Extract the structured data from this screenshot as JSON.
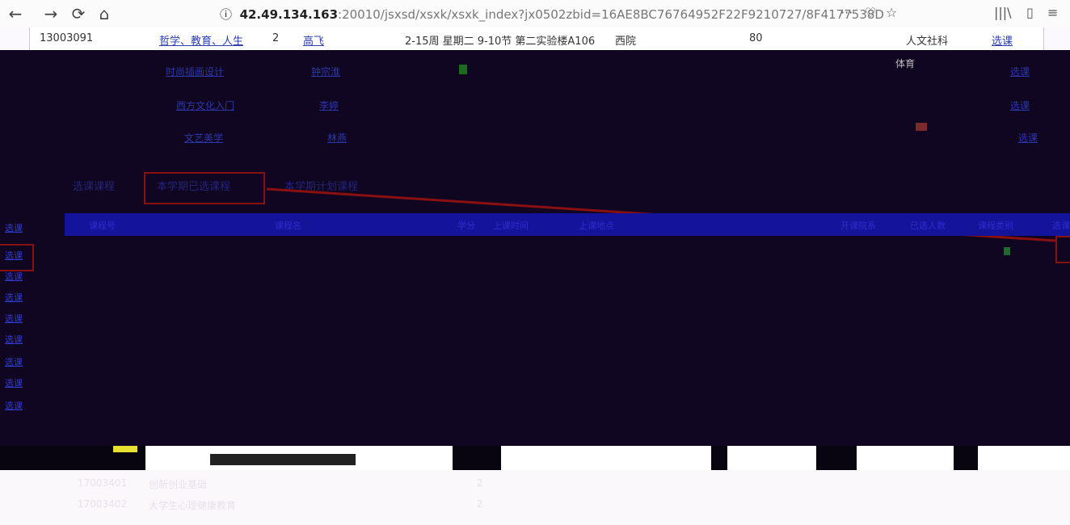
{
  "browser": {
    "back": "←",
    "forward": "→",
    "reload": "⟳",
    "home": "⌂",
    "info": "ⓘ",
    "url_host": "42.49.134.163",
    "url_rest": ":20010/jsxsd/xsxk/xsxk_index?jx0502zbid=16AE8BC76764952F22F9210727/8F4177538D",
    "more": "···",
    "pocket": "♡",
    "star": "☆",
    "library": "|||\\",
    "sidebar": "▯",
    "menu": "≡"
  },
  "course_row": {
    "code": "13003091",
    "name": "哲学、教育、人生",
    "credits": "2",
    "teacher": "高飞",
    "schedule": "2-15周 星期二 9-10节 第二实验楼A106",
    "campus": "西院",
    "capacity": "80",
    "dept": "人文社科",
    "select": "选课"
  },
  "dark_rows": [
    {
      "link": "时尚插画设计",
      "teacher": "钟宗淮",
      "select": "选课",
      "dept": "体育"
    },
    {
      "link": "西方文化入门",
      "teacher": "李婷",
      "select": "选课",
      "dept": ""
    },
    {
      "link": "文艺美学",
      "teacher": "林燕",
      "select": "选课",
      "dept": ""
    }
  ],
  "tabs": [
    "选课课程",
    "本学期已选课程",
    "本学期计划课程"
  ],
  "table_headers": [
    "课程号",
    "课程名",
    "学分",
    "上课时间",
    "上课地点",
    "开课院系",
    "已选人数",
    "课程类别",
    "选课"
  ],
  "side_links": [
    "选课",
    "选课",
    "选课",
    "选课",
    "选课",
    "选课",
    "选课",
    "选课",
    "选课"
  ],
  "light_rows": [
    {
      "code": "17003401",
      "name": "创新创业基础",
      "credits": "2"
    },
    {
      "code": "17003402",
      "name": "大学生心理健康教育",
      "credits": "2"
    }
  ]
}
